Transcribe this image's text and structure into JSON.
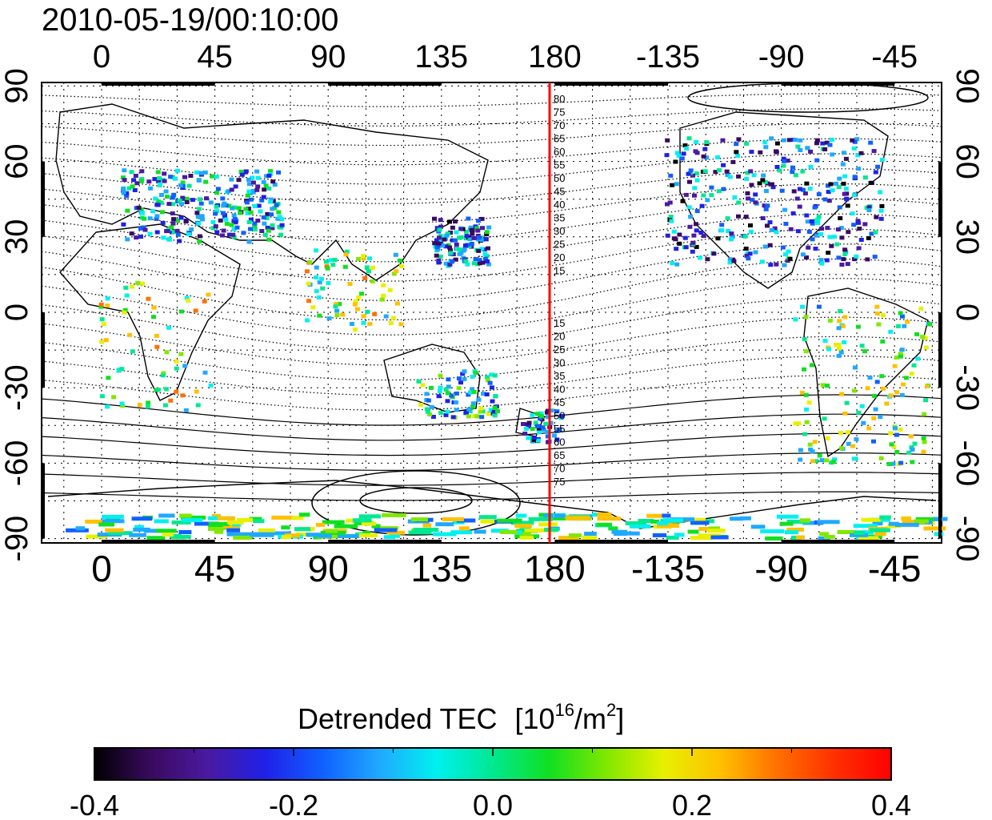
{
  "timestamp": "2010-05-19/00:10:00",
  "map": {
    "lon_ticks": [
      "0",
      "45",
      "90",
      "135",
      "180",
      "-135",
      "-90",
      "-45"
    ],
    "lat_ticks": [
      "90",
      "60",
      "30",
      "0",
      "-30",
      "-60",
      "-90"
    ],
    "contour_labels_north": [
      "80",
      "75",
      "70",
      "65",
      "60",
      "55",
      "50",
      "45",
      "40",
      "35",
      "30",
      "25",
      "20",
      "15"
    ],
    "contour_labels_south": [
      "15",
      "20",
      "25",
      "30",
      "35",
      "40",
      "45",
      "50",
      "55",
      "60",
      "65",
      "70",
      "75"
    ],
    "meridian_line_color": "#ff0000",
    "coastline_color": "#000000",
    "grid_style": "dotted",
    "land_fill": "#ffffff"
  },
  "colorbar": {
    "title": "Detrended TEC",
    "unit_base": "10",
    "unit_exp": "16",
    "unit_mid": "/m",
    "unit_exp2": "2",
    "tick_labels": [
      "-0.4",
      "-0.2",
      "0.0",
      "0.2",
      "0.4"
    ],
    "min": -0.4,
    "max": 0.4,
    "colormap": [
      "#000000",
      "#3a0a60",
      "#4a1aa0",
      "#2020e8",
      "#1060ff",
      "#20a8ff",
      "#00f0f0",
      "#00e890",
      "#10e020",
      "#80e800",
      "#e8f000",
      "#ffc000",
      "#ff7000",
      "#ff3000",
      "#ff0000"
    ]
  }
}
